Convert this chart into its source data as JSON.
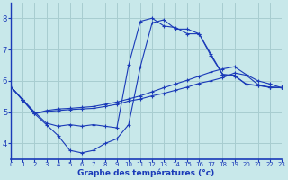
{
  "xlabel": "Graphe des températures (°c)",
  "xlim": [
    0,
    23
  ],
  "ylim": [
    3.5,
    8.5
  ],
  "yticks": [
    4,
    5,
    6,
    7,
    8
  ],
  "xticks": [
    0,
    1,
    2,
    3,
    4,
    5,
    6,
    7,
    8,
    9,
    10,
    11,
    12,
    13,
    14,
    15,
    16,
    17,
    18,
    19,
    20,
    21,
    22,
    23
  ],
  "bg_color": "#c8e8ea",
  "grid_color": "#a8cdd0",
  "line_color": "#1a3ab8",
  "lines": [
    {
      "x": [
        0,
        1,
        2,
        3,
        4,
        5,
        6,
        7,
        8,
        9,
        10,
        11,
        12,
        13,
        14,
        15,
        16,
        17,
        18,
        19,
        20,
        21,
        22,
        23
      ],
      "y": [
        5.8,
        5.4,
        5.0,
        4.65,
        4.55,
        4.6,
        4.55,
        4.6,
        4.55,
        4.5,
        6.5,
        7.9,
        8.0,
        7.75,
        7.7,
        7.5,
        7.5,
        6.8,
        6.2,
        6.15,
        5.9,
        5.85,
        5.8,
        5.78
      ]
    },
    {
      "x": [
        0,
        1,
        2,
        3,
        4,
        5,
        6,
        7,
        8,
        9,
        10,
        11,
        12,
        13,
        14,
        15,
        16,
        17,
        18,
        19,
        20,
        21,
        22,
        23
      ],
      "y": [
        5.8,
        5.38,
        4.95,
        4.6,
        4.25,
        3.78,
        3.7,
        3.78,
        4.0,
        4.15,
        4.6,
        6.45,
        7.85,
        7.95,
        7.65,
        7.65,
        7.5,
        6.85,
        6.2,
        6.18,
        5.88,
        5.85,
        5.8,
        5.78
      ]
    },
    {
      "x": [
        0,
        1,
        2,
        3,
        4,
        5,
        6,
        7,
        8,
        9,
        10,
        11,
        12,
        13,
        14,
        15,
        16,
        17,
        18,
        19,
        20,
        21,
        22,
        23
      ],
      "y": [
        5.8,
        5.38,
        4.95,
        5.05,
        5.1,
        5.12,
        5.15,
        5.18,
        5.25,
        5.32,
        5.42,
        5.52,
        5.65,
        5.78,
        5.9,
        6.02,
        6.15,
        6.28,
        6.38,
        6.45,
        6.2,
        6.0,
        5.9,
        5.78
      ]
    },
    {
      "x": [
        0,
        1,
        2,
        3,
        4,
        5,
        6,
        7,
        8,
        9,
        10,
        11,
        12,
        13,
        14,
        15,
        16,
        17,
        18,
        19,
        20,
        21,
        22,
        23
      ],
      "y": [
        5.8,
        5.38,
        4.95,
        5.02,
        5.05,
        5.08,
        5.1,
        5.12,
        5.18,
        5.25,
        5.35,
        5.42,
        5.52,
        5.6,
        5.7,
        5.8,
        5.92,
        6.0,
        6.1,
        6.25,
        6.18,
        5.88,
        5.78,
        5.78
      ]
    }
  ]
}
